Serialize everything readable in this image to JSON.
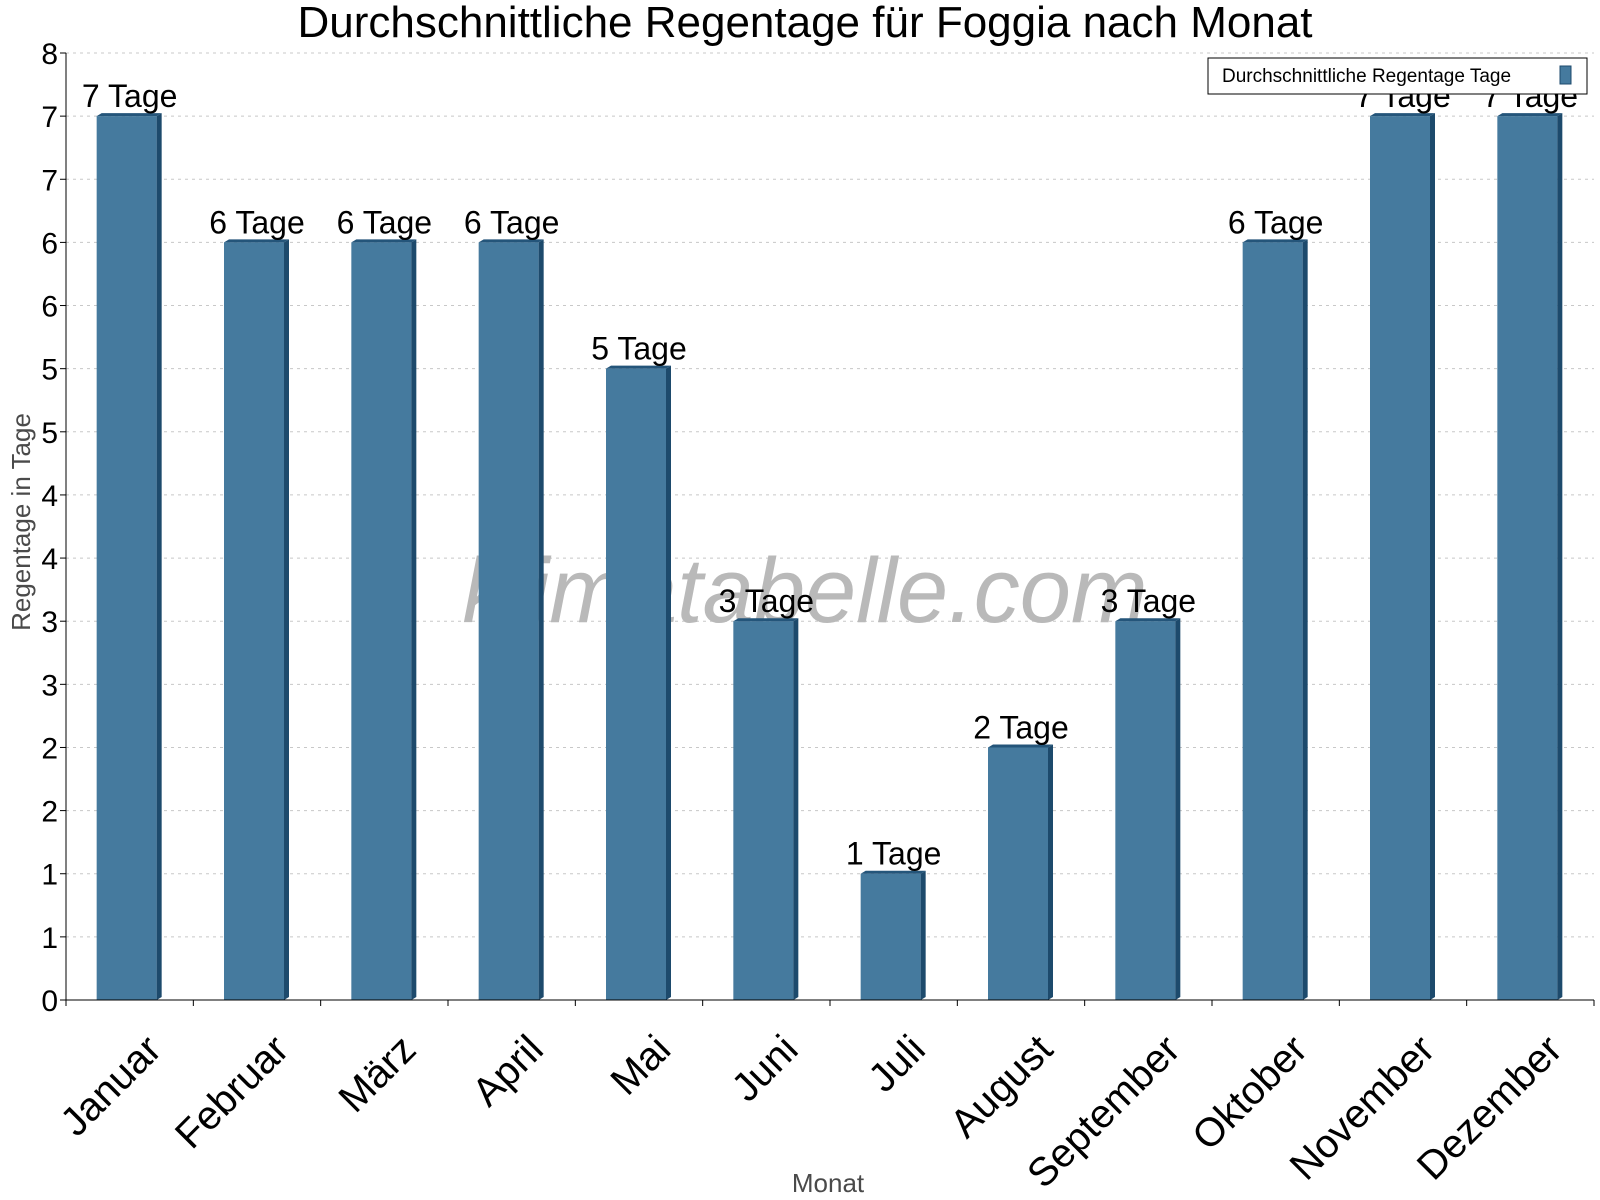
{
  "chart_data": {
    "type": "bar",
    "title": "Durchschnittliche Regentage für Foggia nach Monat",
    "xlabel": "Monat",
    "ylabel": "Regentage in Tage",
    "categories": [
      "Januar",
      "Februar",
      "März",
      "April",
      "Mai",
      "Juni",
      "Juli",
      "August",
      "September",
      "Oktober",
      "November",
      "Dezember"
    ],
    "series": [
      {
        "name": "Durchschnittliche Regentage Tage",
        "values": [
          7,
          6,
          6,
          6,
          5,
          3,
          1,
          2,
          3,
          6,
          7,
          7
        ],
        "labels": [
          "7 Tage",
          "6 Tage",
          "6 Tage",
          "6 Tage",
          "5 Tage",
          "3 Tage",
          "1 Tage",
          "2 Tage",
          "3 Tage",
          "6 Tage",
          "7 Tage",
          "7 Tage"
        ]
      }
    ],
    "ylim": [
      0,
      7.5
    ],
    "y_tick_values": [
      0,
      0.5,
      1,
      1.5,
      2,
      2.5,
      3,
      3.5,
      4,
      4.5,
      5,
      5.5,
      6,
      6.5,
      7,
      7.5
    ],
    "y_tick_labels": [
      "0",
      "1",
      "1",
      "2",
      "2",
      "3",
      "3",
      "4",
      "4",
      "5",
      "5",
      "6",
      "6",
      "7",
      "7",
      "8"
    ],
    "grid": true,
    "legend_position": "top-right",
    "colors": {
      "bar": "#457a9e",
      "bar_side": "#1d4a6c",
      "bar_top": "#24557a"
    }
  },
  "watermark": "klimatabelle.com"
}
